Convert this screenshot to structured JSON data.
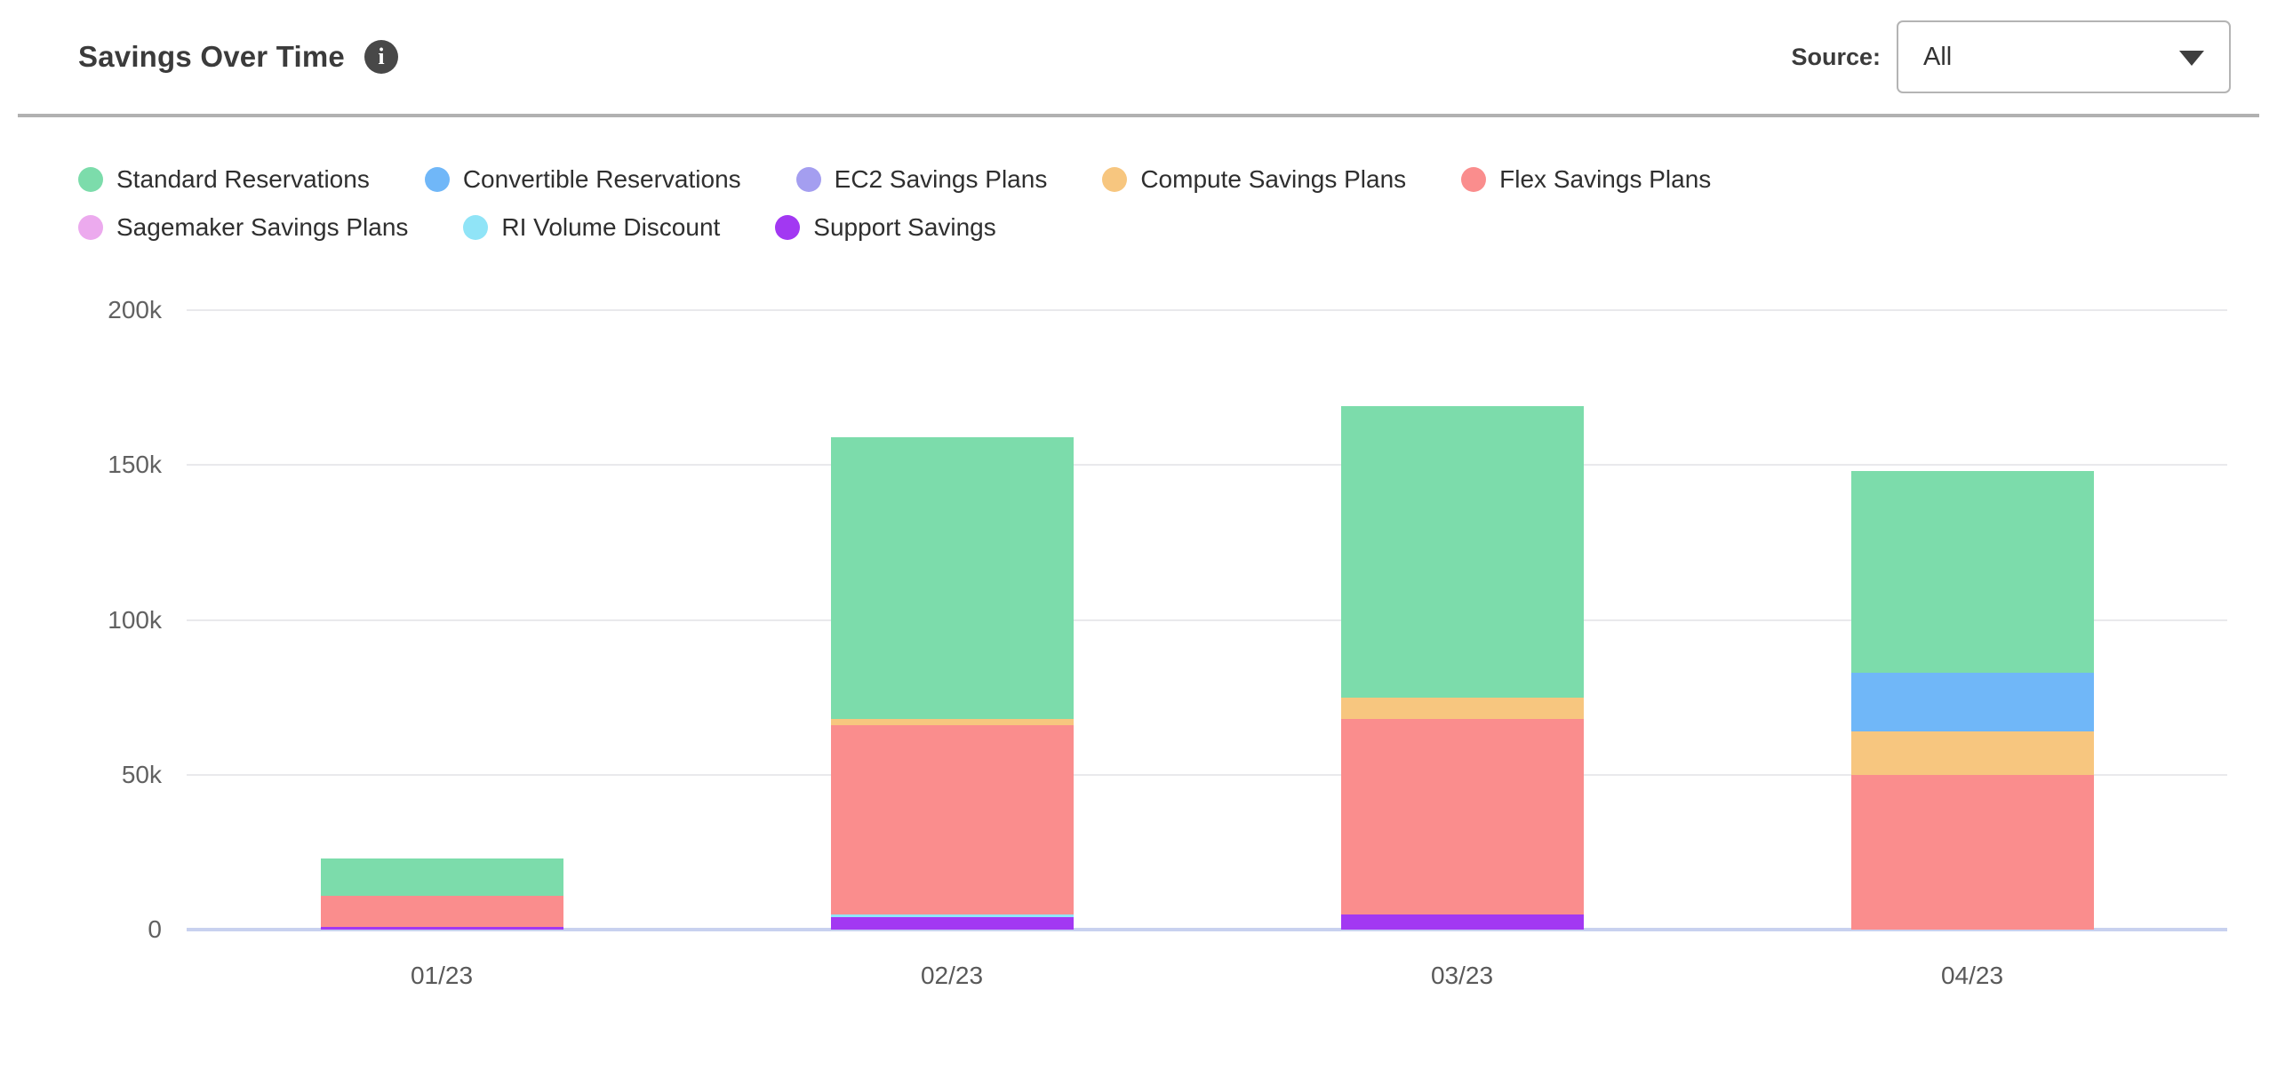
{
  "header": {
    "title": "Savings Over Time",
    "source_label": "Source:",
    "source_value": "All"
  },
  "colors": {
    "divider": "#b1b1b1",
    "gridline": "#e9e9ec",
    "baseline": "#c8d1ef",
    "info_icon_bg": "#484848",
    "title_text": "#3b3b3b",
    "legend_text": "#2f2f2f",
    "tick_text": "#616161"
  },
  "chart_data": {
    "type": "bar",
    "stacked": true,
    "title": "Savings Over Time",
    "categories": [
      "01/23",
      "02/23",
      "03/23",
      "04/23"
    ],
    "series": [
      {
        "name": "Standard Reservations",
        "color": "#7cdcab",
        "values": [
          12000,
          91000,
          94000,
          65000
        ]
      },
      {
        "name": "Convertible Reservations",
        "color": "#70b7f8",
        "values": [
          0,
          0,
          0,
          19000
        ]
      },
      {
        "name": "EC2 Savings Plans",
        "color": "#a49ef0",
        "values": [
          0,
          0,
          0,
          0
        ]
      },
      {
        "name": "Compute Savings Plans",
        "color": "#f7c67f",
        "values": [
          0,
          2000,
          7000,
          14000
        ]
      },
      {
        "name": "Flex Savings Plans",
        "color": "#fa8d8d",
        "values": [
          10000,
          61000,
          63000,
          50000
        ]
      },
      {
        "name": "Sagemaker Savings Plans",
        "color": "#ecaaee",
        "values": [
          0,
          0,
          0,
          0
        ]
      },
      {
        "name": "RI Volume Discount",
        "color": "#90e4f7",
        "values": [
          0,
          1000,
          0,
          0
        ]
      },
      {
        "name": "Support Savings",
        "color": "#a238f2",
        "values": [
          1000,
          4000,
          5000,
          0
        ]
      }
    ],
    "stack_order_bottom_to_top": [
      "Support Savings",
      "RI Volume Discount",
      "Sagemaker Savings Plans",
      "Flex Savings Plans",
      "Compute Savings Plans",
      "EC2 Savings Plans",
      "Convertible Reservations",
      "Standard Reservations"
    ],
    "bar_totals": [
      23000,
      159000,
      169000,
      148000
    ],
    "xlabel": "",
    "ylabel": "",
    "ylim": [
      0,
      200000
    ],
    "yticks": [
      {
        "label": "0",
        "value": 0
      },
      {
        "label": "50k",
        "value": 50000
      },
      {
        "label": "100k",
        "value": 100000
      },
      {
        "label": "150k",
        "value": 150000
      },
      {
        "label": "200k",
        "value": 200000
      }
    ],
    "grid": true,
    "legend_position": "top-left",
    "legend_rows": [
      5,
      3
    ]
  }
}
